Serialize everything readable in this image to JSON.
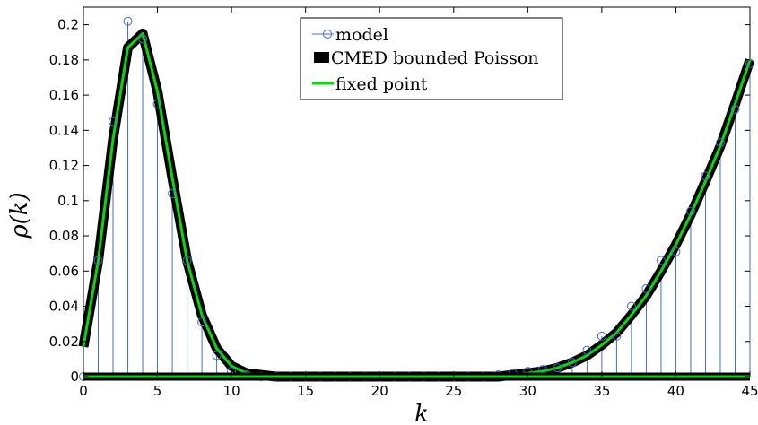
{
  "chart_data": {
    "type": "line",
    "title": "",
    "xlabel": "k",
    "ylabel": "ρ(k)",
    "xlim": [
      0,
      45
    ],
    "ylim": [
      0,
      0.21
    ],
    "xticks": [
      0,
      5,
      10,
      15,
      20,
      25,
      30,
      35,
      40,
      45
    ],
    "yticks": [
      0,
      0.02,
      0.04,
      0.06,
      0.08,
      0.1,
      0.12,
      0.14,
      0.16,
      0.18,
      0.2
    ],
    "grid": false,
    "legend_position": "top-center",
    "colors": {
      "model": "#4169e1",
      "cmed": "#000000",
      "fixed": "#00e000"
    },
    "series": [
      {
        "name": "model",
        "style": "stem",
        "x": [
          0,
          1,
          2,
          3,
          4,
          5,
          6,
          7,
          8,
          9,
          10,
          11,
          12,
          13,
          14,
          15,
          16,
          17,
          18,
          19,
          20,
          21,
          22,
          23,
          24,
          25,
          26,
          27,
          28,
          29,
          30,
          31,
          32,
          33,
          34,
          35,
          36,
          37,
          38,
          39,
          40,
          41,
          42,
          43,
          44,
          45
        ],
        "values": [
          0,
          0.066,
          0.145,
          0.202,
          0.192,
          0.155,
          0.104,
          0.066,
          0.031,
          0.012,
          0.003,
          0.001,
          0,
          0,
          0,
          0,
          0,
          0,
          0,
          0,
          0,
          0,
          0,
          0,
          0,
          0,
          0,
          0,
          0.001,
          0.002,
          0.003,
          0.004,
          0.005,
          0.008,
          0.015,
          0.023,
          0.023,
          0.04,
          0.05,
          0.066,
          0.071,
          0.094,
          0.114,
          0.133,
          0.152,
          0.178
        ]
      },
      {
        "name": "CMED bounded Poisson",
        "style": "line",
        "x": [
          0,
          1,
          2,
          3,
          4,
          5,
          6,
          7,
          8,
          9,
          10,
          11,
          12,
          13,
          14,
          15,
          16,
          17,
          18,
          19,
          20,
          21,
          22,
          23,
          24,
          25,
          26,
          27,
          28,
          29,
          30,
          31,
          32,
          33,
          34,
          35,
          36,
          37,
          38,
          39,
          40,
          41,
          42,
          43,
          44,
          45
        ],
        "values": [
          0.017,
          0.066,
          0.135,
          0.187,
          0.195,
          0.162,
          0.113,
          0.066,
          0.035,
          0.016,
          0.006,
          0.002,
          0.001,
          0,
          0,
          0,
          0,
          0,
          0,
          0,
          0,
          0,
          0,
          0,
          0,
          0,
          0,
          0,
          0,
          0.001,
          0.002,
          0.003,
          0.005,
          0.008,
          0.012,
          0.018,
          0.025,
          0.035,
          0.046,
          0.06,
          0.075,
          0.092,
          0.111,
          0.131,
          0.155,
          0.18
        ]
      },
      {
        "name": "fixed point",
        "style": "line",
        "x": [
          0,
          1,
          2,
          3,
          4,
          5,
          6,
          7,
          8,
          9,
          10,
          11,
          12,
          13,
          14,
          15,
          16,
          17,
          18,
          19,
          20,
          21,
          22,
          23,
          24,
          25,
          26,
          27,
          28,
          29,
          30,
          31,
          32,
          33,
          34,
          35,
          36,
          37,
          38,
          39,
          40,
          41,
          42,
          43,
          44,
          45
        ],
        "values": [
          0.017,
          0.066,
          0.135,
          0.187,
          0.195,
          0.162,
          0.113,
          0.066,
          0.035,
          0.016,
          0.006,
          0.002,
          0.001,
          0,
          0,
          0,
          0,
          0,
          0,
          0,
          0,
          0,
          0,
          0,
          0,
          0,
          0,
          0,
          0,
          0.001,
          0.002,
          0.003,
          0.005,
          0.008,
          0.012,
          0.018,
          0.025,
          0.035,
          0.046,
          0.06,
          0.075,
          0.092,
          0.111,
          0.131,
          0.155,
          0.18
        ]
      }
    ],
    "legend": [
      "model",
      "CMED bounded Poisson",
      "fixed point"
    ]
  }
}
